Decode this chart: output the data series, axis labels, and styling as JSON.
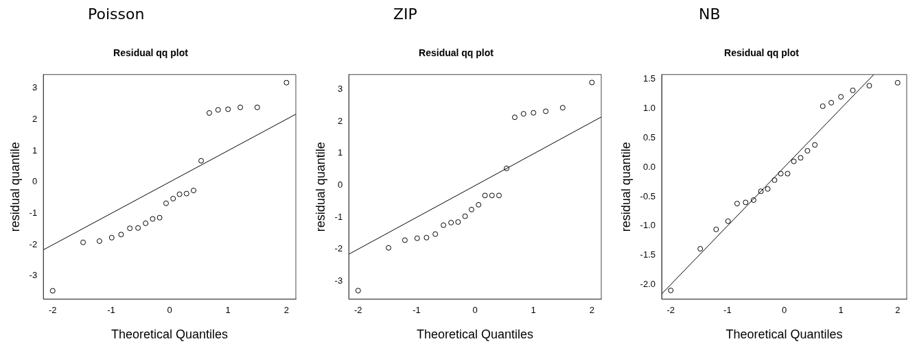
{
  "chart_data": [
    {
      "type": "scatter",
      "title": "Poisson",
      "subtitle": "Residual qq plot",
      "xlabel": "Theoretical Quantiles",
      "ylabel": "residual quantile",
      "xlim": [
        -2.16,
        2.16
      ],
      "ylim": [
        -3.75,
        3.44
      ],
      "xticks": [
        -2,
        -1,
        0,
        1,
        2
      ],
      "yticks": [
        -3,
        -2,
        -1,
        0,
        1,
        2,
        3
      ],
      "series": [
        {
          "marker": "circle",
          "color": "#000000",
          "x": [
            -2,
            -1.48,
            -1.2,
            -0.99,
            -0.83,
            -0.68,
            -0.54,
            -0.41,
            -0.29,
            -0.17,
            -0.06,
            0.06,
            0.17,
            0.29,
            0.41,
            0.54,
            0.68,
            0.83,
            1,
            1.21,
            1.5,
            2
          ],
          "values": [
            -3.48,
            -1.93,
            -1.89,
            -1.78,
            -1.68,
            -1.48,
            -1.47,
            -1.32,
            -1.18,
            -1.14,
            -0.68,
            -0.53,
            -0.39,
            -0.37,
            -0.27,
            0.68,
            2.21,
            2.31,
            2.33,
            2.39,
            2.39,
            3.18
          ]
        },
        {
          "type": "line",
          "marker": "none",
          "color": "#000000",
          "x": [
            -2.16,
            2.16
          ],
          "values": [
            -2.17,
            2.17
          ]
        }
      ]
    },
    {
      "type": "scatter",
      "title": "ZIP",
      "subtitle": "Residual qq plot",
      "xlabel": "Theoretical Quantiles",
      "ylabel": "residual quantile",
      "xlim": [
        -2.16,
        2.16
      ],
      "ylim": [
        -3.57,
        3.47
      ],
      "xticks": [
        -2,
        -1,
        0,
        1,
        2
      ],
      "yticks": [
        -3,
        -2,
        -1,
        0,
        1,
        2,
        3
      ],
      "series": [
        {
          "marker": "circle",
          "color": "#000000",
          "x": [
            -2,
            -1.48,
            -1.2,
            -0.99,
            -0.83,
            -0.68,
            -0.54,
            -0.41,
            -0.29,
            -0.17,
            -0.06,
            0.06,
            0.17,
            0.29,
            0.41,
            0.54,
            0.68,
            0.83,
            1,
            1.21,
            1.5,
            2
          ],
          "values": [
            -3.3,
            -1.96,
            -1.72,
            -1.66,
            -1.64,
            -1.53,
            -1.25,
            -1.17,
            -1.15,
            -0.97,
            -0.76,
            -0.61,
            -0.32,
            -0.32,
            -0.32,
            0.53,
            2.13,
            2.24,
            2.27,
            2.32,
            2.43,
            3.22
          ]
        },
        {
          "type": "line",
          "marker": "none",
          "color": "#000000",
          "x": [
            -2.16,
            2.16
          ],
          "values": [
            -2.16,
            2.14
          ]
        }
      ]
    },
    {
      "type": "scatter",
      "title": "NB",
      "subtitle": "Residual qq plot",
      "xlabel": "Theoretical Quantiles",
      "ylabel": "residual quantile",
      "xlim": [
        -2.16,
        2.16
      ],
      "ylim": [
        -2.25,
        1.58
      ],
      "xticks": [
        -2,
        -1,
        0,
        1,
        2
      ],
      "yticks": [
        {
          "value": -2,
          "label": "-2.0"
        },
        {
          "value": -1.5,
          "label": "-1.5"
        },
        {
          "value": -1,
          "label": "-1.0"
        },
        {
          "value": -0.5,
          "label": "-0.5"
        },
        {
          "value": 0,
          "label": "0.0"
        },
        {
          "value": 0.5,
          "label": "0.5"
        },
        {
          "value": 1,
          "label": "1.0"
        },
        {
          "value": 1.5,
          "label": "1.5"
        }
      ],
      "series": [
        {
          "marker": "circle",
          "color": "#000000",
          "x": [
            -2,
            -1.48,
            -1.2,
            -0.99,
            -0.83,
            -0.68,
            -0.54,
            -0.41,
            -0.29,
            -0.17,
            -0.06,
            0.06,
            0.17,
            0.29,
            0.41,
            0.54,
            0.68,
            0.83,
            1,
            1.21,
            1.5,
            2
          ],
          "values": [
            -2.1,
            -1.39,
            -1.06,
            -0.92,
            -0.62,
            -0.6,
            -0.56,
            -0.41,
            -0.37,
            -0.22,
            -0.11,
            -0.11,
            0.1,
            0.16,
            0.28,
            0.38,
            1.04,
            1.1,
            1.2,
            1.31,
            1.39,
            1.44
          ]
        },
        {
          "type": "line",
          "marker": "none",
          "color": "#000000",
          "x": [
            -2.16,
            1.58
          ],
          "values": [
            -2.16,
            1.58
          ]
        }
      ]
    }
  ]
}
